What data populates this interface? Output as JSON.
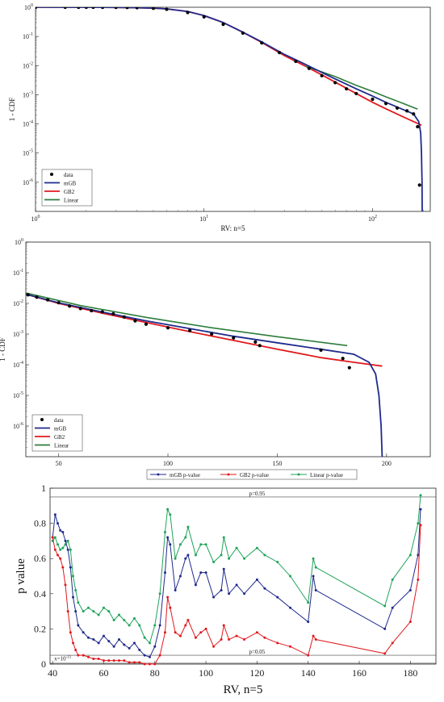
{
  "chart_data": [
    {
      "type": "scatter",
      "xscale": "log",
      "yscale": "log",
      "xlim": [
        1,
        220
      ],
      "ylim": [
        1e-07,
        1
      ],
      "xlabel": "RV: n=5",
      "ylabel": "1 - CDF",
      "xtick_labels": [
        "10^0",
        "10^1",
        "10^2"
      ],
      "ytick_labels": [
        "10^0",
        "10^-1",
        "10^-2",
        "10^-3",
        "10^-4",
        "10^-5",
        "10^-6"
      ],
      "legend": {
        "position": "bottom-left",
        "entries": [
          "data",
          "mGB",
          "GB2",
          "Linear"
        ]
      },
      "colors": {
        "data": "#000000",
        "mGB": "#1f2a8c",
        "GB2": "#e0191e",
        "Linear": "#2e7d3c"
      },
      "series": [
        {
          "name": "data",
          "kind": "points",
          "x": [
            1.0,
            1.5,
            1.8,
            2.0,
            2.2,
            2.5,
            3.0,
            3.5,
            4.0,
            5.0,
            6.0,
            8.0,
            10.0,
            13.0,
            17.0,
            22.0,
            28.0,
            35.0,
            42.0,
            50.0,
            60.0,
            70.0,
            80.0,
            100.0,
            120.0,
            140.0,
            160.0,
            175.0,
            185.0,
            190.0
          ],
          "y": [
            1.0,
            1.0,
            1.0,
            0.998,
            0.997,
            0.995,
            0.99,
            0.98,
            0.965,
            0.92,
            0.85,
            0.66,
            0.47,
            0.26,
            0.13,
            0.06,
            0.028,
            0.014,
            0.008,
            0.0045,
            0.0026,
            0.0016,
            0.0011,
            0.0007,
            0.0005,
            0.00035,
            0.00028,
            0.00022,
            8e-05,
            8e-07
          ]
        },
        {
          "name": "mGB",
          "kind": "line",
          "x": [
            1.0,
            2.0,
            3.0,
            4.0,
            5.0,
            6.0,
            8.0,
            10.0,
            13.0,
            17.0,
            22.0,
            30.0,
            40.0,
            50.0,
            60.0,
            80.0,
            100.0,
            120.0,
            150.0,
            175.0,
            188.0,
            193.0,
            195.0,
            196.5,
            197.0
          ],
          "y": [
            1.0,
            0.995,
            0.985,
            0.965,
            0.93,
            0.88,
            0.72,
            0.52,
            0.3,
            0.14,
            0.065,
            0.024,
            0.011,
            0.0058,
            0.0035,
            0.0016,
            0.0009,
            0.00055,
            0.00032,
            0.00022,
            0.00012,
            5e-05,
            1e-05,
            1e-06,
            1e-07
          ]
        },
        {
          "name": "GB2",
          "kind": "line",
          "x": [
            1.0,
            2.0,
            3.0,
            4.0,
            5.0,
            6.0,
            8.0,
            10.0,
            13.0,
            17.0,
            22.0,
            30.0,
            40.0,
            50.0,
            60.0,
            80.0,
            100.0,
            120.0,
            150.0,
            175.0,
            195.0
          ],
          "y": [
            1.0,
            0.995,
            0.985,
            0.965,
            0.93,
            0.88,
            0.72,
            0.52,
            0.3,
            0.14,
            0.062,
            0.022,
            0.0095,
            0.0048,
            0.0027,
            0.0011,
            0.00055,
            0.00033,
            0.00018,
            0.00012,
            9e-05
          ]
        },
        {
          "name": "Linear",
          "kind": "line",
          "x": [
            40.0,
            60.0,
            80.0,
            100.0,
            120.0,
            150.0,
            185.0
          ],
          "y": [
            0.0095,
            0.0042,
            0.0021,
            0.0013,
            0.00085,
            0.00052,
            0.00032
          ]
        }
      ]
    },
    {
      "type": "scatter",
      "xscale": "linear",
      "yscale": "log",
      "xlim": [
        35,
        220
      ],
      "ylim": [
        1e-07,
        1
      ],
      "xlabel": "RV: n=5",
      "ylabel": "1 - CDF",
      "xticks": [
        50,
        100,
        150,
        200
      ],
      "ytick_labels": [
        "10^0",
        "10^-1",
        "10^-2",
        "10^-3",
        "10^-4",
        "10^-5",
        "10^-6"
      ],
      "legend": {
        "position": "bottom-left",
        "entries": [
          "data",
          "mGB",
          "GB2",
          "Linear"
        ]
      },
      "series": [
        {
          "name": "data",
          "kind": "points",
          "x": [
            36,
            40,
            45,
            50,
            55,
            60,
            65,
            70,
            75,
            80,
            85,
            90,
            100,
            110,
            120,
            130,
            140,
            142,
            170,
            180,
            183
          ],
          "y": [
            0.019,
            0.016,
            0.013,
            0.0105,
            0.0082,
            0.0068,
            0.0058,
            0.0053,
            0.0046,
            0.0036,
            0.0027,
            0.0021,
            0.0016,
            0.0013,
            0.001,
            0.00075,
            0.00055,
            0.00042,
            0.0003,
            0.00016,
            8e-05
          ]
        },
        {
          "name": "mGB",
          "kind": "line",
          "x": [
            35,
            50,
            70,
            90,
            110,
            130,
            150,
            170,
            185,
            192,
            195,
            196.5,
            197.5,
            198
          ],
          "y": [
            0.02,
            0.0105,
            0.0052,
            0.0027,
            0.0015,
            0.00085,
            0.00052,
            0.00032,
            0.00022,
            0.00012,
            5e-05,
            1e-05,
            1e-06,
            1e-07
          ]
        },
        {
          "name": "GB2",
          "kind": "line",
          "x": [
            35,
            50,
            70,
            90,
            110,
            130,
            150,
            170,
            185,
            198
          ],
          "y": [
            0.02,
            0.01,
            0.0048,
            0.0024,
            0.0012,
            0.00062,
            0.00032,
            0.00017,
            0.00012,
            9e-05
          ]
        },
        {
          "name": "Linear",
          "kind": "line",
          "x": [
            35,
            60,
            90,
            120,
            150,
            182
          ],
          "y": [
            0.022,
            0.0085,
            0.0035,
            0.0016,
            0.00082,
            0.00042
          ]
        }
      ]
    },
    {
      "type": "line",
      "xlim": [
        39,
        190
      ],
      "ylim": [
        0,
        1
      ],
      "xlabel": "RV, n=5",
      "ylabel": "p value",
      "xticks": [
        40,
        60,
        80,
        100,
        120,
        140,
        160,
        180
      ],
      "yticks": [
        0,
        0.2,
        0.4,
        0.6,
        0.8,
        1
      ],
      "legend": {
        "position": "top",
        "entries": [
          "mGB p-value",
          "GB2 p-value",
          "Linear p-value"
        ]
      },
      "annotations": [
        {
          "text": "p=0.95",
          "y": 0.95,
          "x": 120
        },
        {
          "text": "p=0.05",
          "y": 0.05,
          "x": 120
        },
        {
          "text": "x=10^{-15}",
          "y": 0.005,
          "x": 40
        }
      ],
      "reference_lines": [
        0.95,
        0.05,
        0.005
      ],
      "series": [
        {
          "name": "mGB p-value",
          "color": "#1f2a8c",
          "x": [
            40,
            41,
            42,
            43,
            44,
            45,
            46,
            47,
            48,
            49,
            50,
            52,
            54,
            56,
            58,
            60,
            62,
            64,
            66,
            68,
            70,
            72,
            74,
            76,
            78,
            80,
            82,
            84,
            85,
            86,
            88,
            90,
            92,
            93,
            96,
            98,
            100,
            103,
            106,
            107,
            109,
            112,
            115,
            120,
            123,
            128,
            133,
            140,
            142,
            143,
            170,
            173,
            180,
            183,
            184
          ],
          "y": [
            0.72,
            0.85,
            0.8,
            0.76,
            0.75,
            0.7,
            0.65,
            0.55,
            0.38,
            0.3,
            0.22,
            0.18,
            0.15,
            0.14,
            0.12,
            0.16,
            0.13,
            0.1,
            0.14,
            0.11,
            0.09,
            0.12,
            0.08,
            0.05,
            0.04,
            0.1,
            0.22,
            0.52,
            0.72,
            0.68,
            0.42,
            0.5,
            0.6,
            0.62,
            0.45,
            0.52,
            0.52,
            0.38,
            0.42,
            0.54,
            0.4,
            0.45,
            0.4,
            0.48,
            0.43,
            0.38,
            0.32,
            0.24,
            0.5,
            0.42,
            0.2,
            0.32,
            0.42,
            0.62,
            0.88
          ]
        },
        {
          "name": "GB2 p-value",
          "color": "#e0191e",
          "x": [
            40,
            41,
            42,
            43,
            44,
            45,
            46,
            47,
            48,
            49,
            50,
            52,
            54,
            56,
            58,
            60,
            62,
            64,
            66,
            68,
            70,
            72,
            74,
            76,
            78,
            80,
            82,
            84,
            85,
            86,
            88,
            90,
            92,
            93,
            96,
            98,
            100,
            103,
            106,
            107,
            109,
            112,
            115,
            120,
            123,
            128,
            133,
            140,
            142,
            143,
            170,
            173,
            180,
            183,
            184
          ],
          "y": [
            0.72,
            0.65,
            0.62,
            0.6,
            0.55,
            0.45,
            0.3,
            0.18,
            0.12,
            0.08,
            0.05,
            0.05,
            0.04,
            0.03,
            0.03,
            0.02,
            0.02,
            0.02,
            0.02,
            0.02,
            0.01,
            0.01,
            0.01,
            0.0,
            0.0,
            0.0,
            0.05,
            0.18,
            0.38,
            0.32,
            0.18,
            0.16,
            0.22,
            0.25,
            0.15,
            0.18,
            0.2,
            0.1,
            0.14,
            0.22,
            0.14,
            0.16,
            0.14,
            0.18,
            0.15,
            0.12,
            0.1,
            0.05,
            0.16,
            0.14,
            0.06,
            0.12,
            0.24,
            0.48,
            0.79
          ]
        },
        {
          "name": "Linear p-value",
          "color": "#1fa35a",
          "x": [
            40,
            41,
            42,
            43,
            44,
            45,
            46,
            47,
            48,
            49,
            50,
            52,
            54,
            56,
            58,
            60,
            62,
            64,
            66,
            68,
            70,
            72,
            74,
            76,
            78,
            80,
            82,
            84,
            85,
            86,
            88,
            90,
            92,
            93,
            96,
            98,
            100,
            103,
            106,
            107,
            109,
            112,
            115,
            120,
            123,
            128,
            133,
            140,
            142,
            143,
            170,
            173,
            180,
            183,
            184
          ],
          "y": [
            0.7,
            0.72,
            0.68,
            0.65,
            0.66,
            0.68,
            0.7,
            0.65,
            0.5,
            0.42,
            0.35,
            0.3,
            0.32,
            0.3,
            0.28,
            0.32,
            0.3,
            0.25,
            0.28,
            0.25,
            0.22,
            0.26,
            0.22,
            0.15,
            0.12,
            0.22,
            0.4,
            0.75,
            0.88,
            0.85,
            0.6,
            0.68,
            0.72,
            0.78,
            0.62,
            0.68,
            0.68,
            0.58,
            0.62,
            0.72,
            0.6,
            0.66,
            0.6,
            0.66,
            0.62,
            0.58,
            0.5,
            0.35,
            0.6,
            0.55,
            0.33,
            0.48,
            0.62,
            0.8,
            0.96
          ]
        }
      ]
    }
  ]
}
